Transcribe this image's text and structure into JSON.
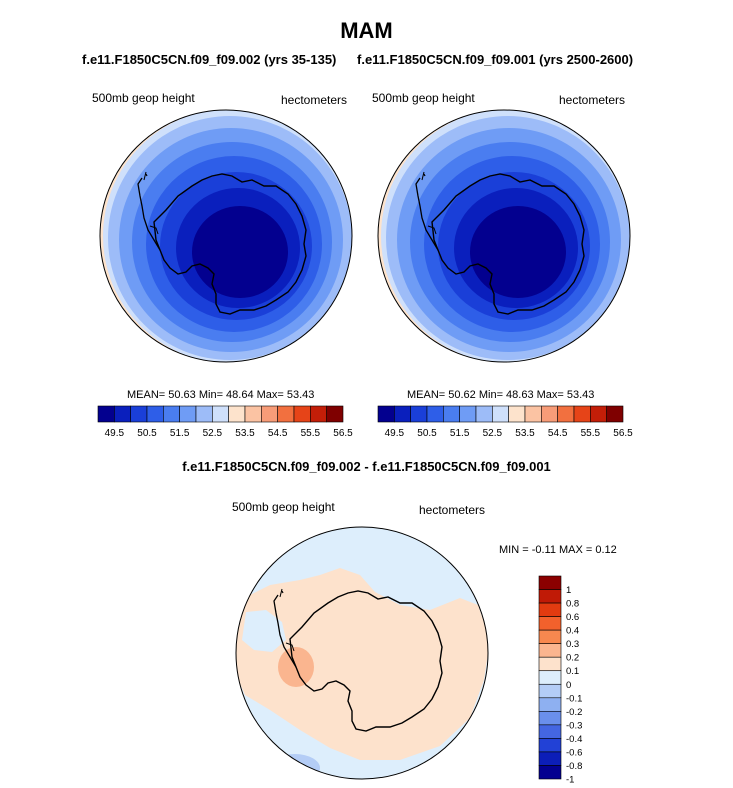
{
  "figure_title": "MAM",
  "panels": [
    {
      "case_label": "f.e11.F1850C5CN.f09_f09.002 (yrs 35-135)",
      "variable_label": "500mb geop height",
      "units_label": "hectometers",
      "stats_text": "MEAN=  50.63  Min=  48.64  Max=  53.43"
    },
    {
      "case_label": "f.e11.F1850C5CN.f09_f09.001 (yrs 2500-2600)",
      "variable_label": "500mb geop height",
      "units_label": "hectometers",
      "stats_text": "MEAN=  50.62  Min=  48.63  Max=  53.43"
    }
  ],
  "colorbar": {
    "colors": [
      "#03008f",
      "#0a1fbd",
      "#1a3fd8",
      "#2e5ee8",
      "#4a7df0",
      "#6f9cf5",
      "#9dbcf8",
      "#cfe0fb",
      "#fde3cc",
      "#fbc3a3",
      "#f79c78",
      "#f2703f",
      "#e64418",
      "#c31e08",
      "#7f0000"
    ],
    "tick_labels": [
      "49.5",
      "50.5",
      "51.5",
      "52.5",
      "53.5",
      "54.5",
      "55.5",
      "56.5"
    ]
  },
  "diff_panel": {
    "title": "f.e11.F1850C5CN.f09_f09.002 - f.e11.F1850C5CN.f09_f09.001",
    "variable_label": "500mb geop height",
    "units_label": "hectometers",
    "minmax_text": "MIN =  -0.11 MAX =   0.12",
    "colorbar": {
      "colors": [
        "#8b0000",
        "#c01a06",
        "#e23b10",
        "#f2612c",
        "#f7884f",
        "#fab58f",
        "#fde2cc",
        "#ddeefc",
        "#b4cdf6",
        "#8eb0f1",
        "#6a8fec",
        "#4466e2",
        "#2241d6",
        "#0c1eb8",
        "#030090"
      ],
      "tick_labels": [
        "1",
        "0.8",
        "0.6",
        "0.4",
        "0.3",
        "0.2",
        "0.1",
        "0",
        "-0.1",
        "-0.2",
        "-0.3",
        "-0.4",
        "-0.6",
        "-0.8",
        "-1"
      ]
    }
  }
}
